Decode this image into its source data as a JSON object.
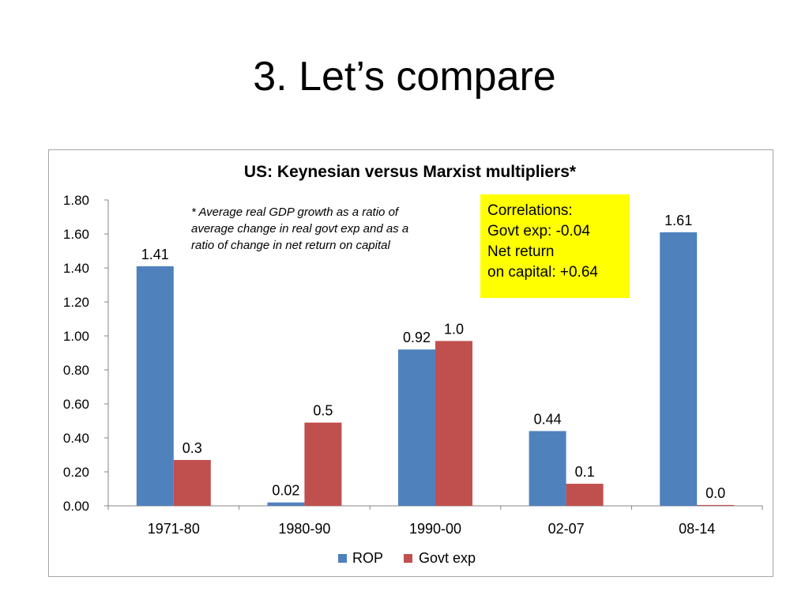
{
  "slide": {
    "title": "3. Let’s compare"
  },
  "annotations": {
    "footnote": "* Average real GDP growth as a ratio of average change in real govt exp and as a ratio of change in net return on capital",
    "correlations": [
      "Correlations:",
      "Govt exp: -0.04",
      "Net return",
      "on capital: +0.64"
    ],
    "correlations_bg": "#ffff00"
  },
  "chart_data": {
    "type": "bar",
    "title": "US: Keynesian versus Marxist multipliers*",
    "categories": [
      "1971-80",
      "1980-90",
      "1990-00",
      "02-07",
      "08-14"
    ],
    "series": [
      {
        "name": "ROP",
        "color": "#4f81bd",
        "values": [
          1.41,
          0.02,
          0.92,
          0.44,
          1.61
        ],
        "labels": [
          "1.41",
          "0.02",
          "0.92",
          "0.44",
          "1.61"
        ]
      },
      {
        "name": "Govt exp",
        "color": "#c0504d",
        "values": [
          0.27,
          0.49,
          0.97,
          0.13,
          0.005
        ],
        "labels": [
          "0.3",
          "0.5",
          "1.0",
          "0.1",
          "0.0"
        ]
      }
    ],
    "yticks": [
      "0.00",
      "0.20",
      "0.40",
      "0.60",
      "0.80",
      "1.00",
      "1.20",
      "1.40",
      "1.60",
      "1.80"
    ],
    "ylim": [
      0,
      1.8
    ],
    "legend_position": "bottom",
    "grid": false
  }
}
